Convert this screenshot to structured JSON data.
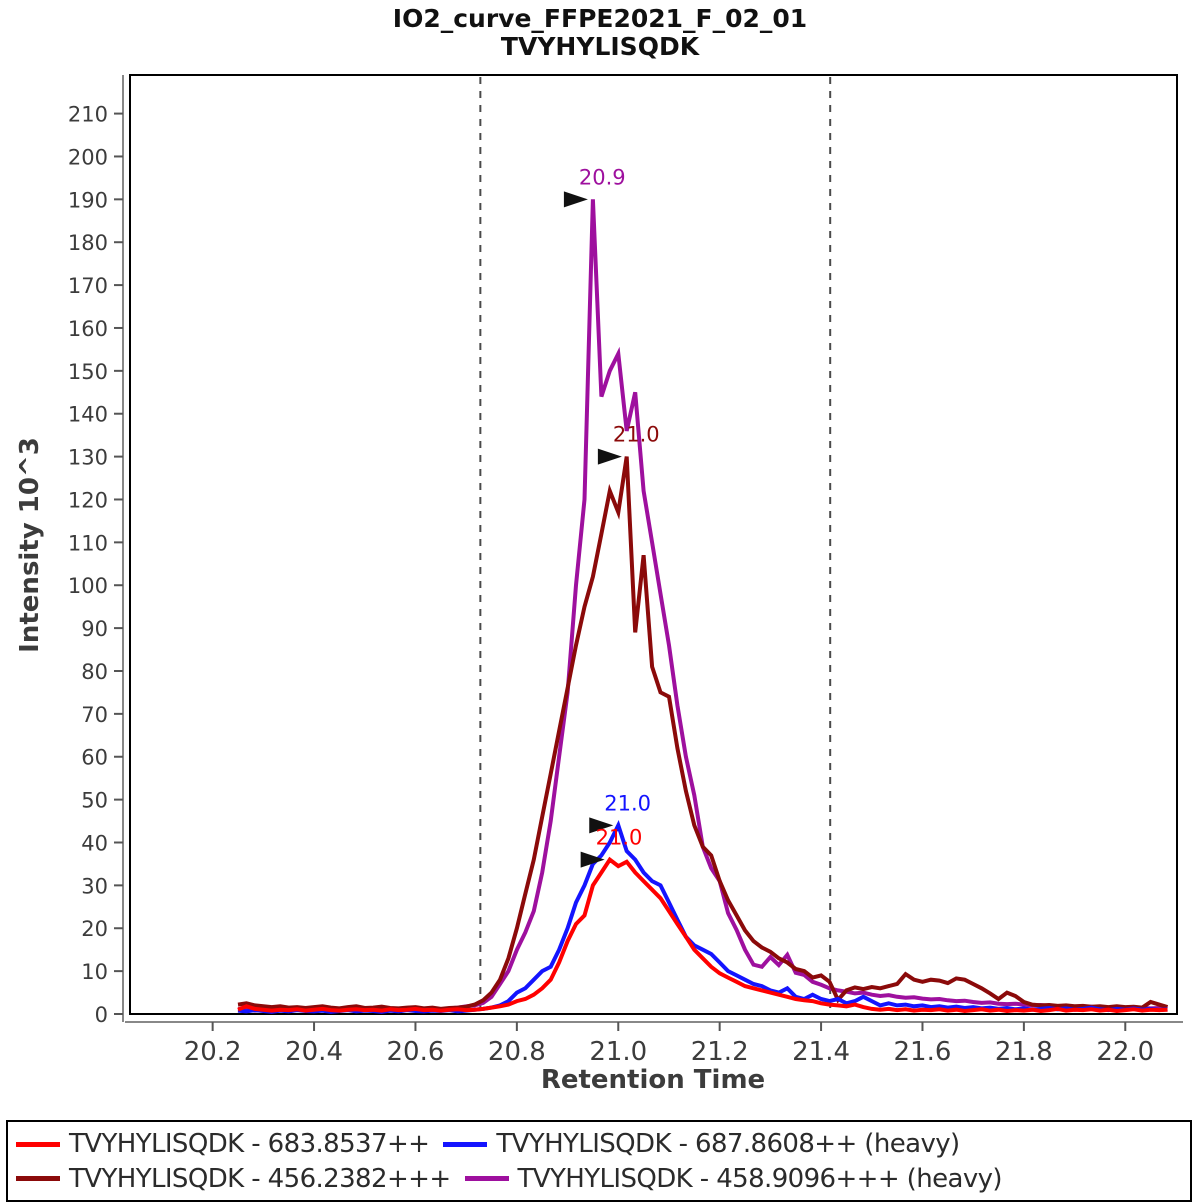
{
  "chart_data": {
    "type": "line",
    "title": "IO2_curve_FFPE2021_F_02_01",
    "subtitle": "TVYHYLISQDK",
    "xlabel": "Retention Time",
    "ylabel": "Intensity 10^3",
    "x_view": [
      20.037,
      22.102
    ],
    "ylim": [
      0,
      219
    ],
    "x_ticks": [
      "20.2",
      "20.4",
      "20.6",
      "20.8",
      "21.0",
      "21.2",
      "21.4",
      "21.6",
      "21.8",
      "22.0"
    ],
    "y_ticks": [
      0,
      10,
      20,
      30,
      40,
      50,
      60,
      70,
      80,
      90,
      100,
      110,
      120,
      130,
      140,
      150,
      160,
      170,
      180,
      190,
      200,
      210
    ],
    "grid": false,
    "x_start": 20.25,
    "x_step": 0.0166667,
    "peak_boundaries": [
      20.728,
      21.418
    ],
    "boundary_color": "#4a4a4a",
    "series": [
      {
        "name": "TVYHYLISQDK - 683.8537++",
        "color": "#ff0000",
        "values": [
          1.0,
          1.8,
          1.2,
          1.0,
          0.8,
          1.0,
          0.9,
          1.1,
          0.8,
          1.0,
          1.2,
          0.9,
          0.8,
          1.0,
          1.1,
          0.9,
          1.0,
          0.8,
          1.1,
          0.9,
          1.0,
          1.2,
          0.9,
          1.0,
          0.8,
          1.0,
          1.1,
          0.9,
          1.0,
          1.2,
          1.5,
          1.8,
          2.2,
          3,
          3.5,
          4.5,
          6,
          8,
          12,
          17,
          21,
          23,
          30,
          33,
          36,
          34.5,
          35.5,
          33,
          31,
          29,
          27,
          24,
          21,
          18,
          15,
          13,
          11,
          9.5,
          8.5,
          7.5,
          6.5,
          6,
          5.5,
          5,
          4.5,
          4,
          3.5,
          3.2,
          3,
          2.5,
          2.2,
          2.0,
          1.8,
          2.2,
          1.6,
          1.2,
          1.0,
          1.2,
          0.9,
          1.1,
          0.8,
          1.0,
          0.9,
          1.1,
          0.8,
          1.0,
          0.7,
          0.9,
          1.1,
          0.8,
          1.0,
          0.7,
          0.9,
          0.8,
          1.0,
          0.7,
          0.9,
          1.2,
          0.8,
          1.0,
          0.9,
          1.1,
          0.8,
          1.0,
          0.7,
          0.9,
          1.1,
          0.8,
          1.0,
          0.9,
          1.0
        ]
      },
      {
        "name": "TVYHYLISQDK - 687.8608++ (heavy)",
        "color": "#1414ff",
        "values": [
          0.8,
          0.6,
          0.9,
          0.7,
          0.5,
          0.8,
          0.6,
          0.9,
          0.7,
          0.6,
          0.8,
          0.5,
          0.7,
          0.9,
          0.6,
          0.8,
          0.7,
          0.5,
          0.8,
          0.6,
          0.9,
          0.7,
          0.6,
          0.8,
          0.7,
          0.9,
          0.6,
          0.8,
          1.0,
          1.2,
          1.5,
          2.0,
          3.0,
          5,
          6,
          8,
          10,
          11,
          15,
          20,
          26,
          30,
          35,
          37,
          40,
          44,
          38,
          36,
          33,
          31,
          30,
          26,
          22,
          18,
          16,
          15,
          14,
          12,
          10,
          9,
          8,
          7,
          6.5,
          5.5,
          5,
          6,
          4,
          3.5,
          4.5,
          3.5,
          3,
          3.5,
          2.5,
          3,
          4,
          3,
          2,
          2.5,
          2,
          2.2,
          1.8,
          2.0,
          1.6,
          1.8,
          1.5,
          1.7,
          1.4,
          1.6,
          1.3,
          1.5,
          1.2,
          1.4,
          1.1,
          1.3,
          1.0,
          1.2,
          1.4,
          1.1,
          1.3,
          1.0,
          1.2,
          1.5,
          1.1,
          0.9,
          1.2,
          1.0,
          1.3,
          1.0,
          1.2,
          0.9,
          1.1
        ]
      },
      {
        "name": "TVYHYLISQDK - 456.2382+++",
        "color": "#8b0a0a",
        "values": [
          2.2,
          2.5,
          2.0,
          1.8,
          1.6,
          1.8,
          1.5,
          1.6,
          1.4,
          1.6,
          1.8,
          1.5,
          1.3,
          1.6,
          1.8,
          1.4,
          1.5,
          1.7,
          1.4,
          1.3,
          1.5,
          1.6,
          1.3,
          1.5,
          1.2,
          1.4,
          1.5,
          1.7,
          2.2,
          3.2,
          5,
          8,
          13,
          20,
          28,
          36,
          46,
          56,
          66,
          76,
          86,
          95,
          102,
          112,
          122,
          117,
          130,
          89,
          107,
          81,
          75,
          74,
          62,
          52,
          44,
          39,
          37,
          31,
          26.5,
          23,
          19.5,
          17,
          15.5,
          14.5,
          13,
          12,
          10.5,
          10,
          8.5,
          9,
          7.5,
          3.3,
          5.5,
          6.2,
          5.8,
          6.3,
          6.0,
          6.5,
          7.0,
          9.3,
          8.0,
          7.5,
          8.0,
          7.8,
          7.2,
          8.3,
          8.0,
          7.0,
          6.0,
          4.8,
          3.5,
          5.0,
          4.2,
          2.8,
          2.2,
          2.0,
          2.1,
          1.9,
          2.0,
          1.8,
          1.9,
          1.7,
          1.8,
          1.6,
          1.8,
          1.6,
          1.7,
          1.5,
          2.8,
          2.2,
          1.6
        ]
      },
      {
        "name": "TVYHYLISQDK - 458.9096+++ (heavy)",
        "color": "#9e109e",
        "values": [
          1.2,
          1.0,
          0.8,
          1.0,
          1.2,
          0.9,
          1.1,
          1.0,
          0.8,
          1.1,
          1.3,
          1.0,
          0.9,
          1.2,
          1.0,
          1.1,
          0.9,
          1.0,
          1.2,
          0.8,
          1.0,
          1.1,
          0.9,
          1.2,
          1.0,
          1.3,
          1.5,
          1.8,
          2.0,
          2.6,
          4,
          7,
          10,
          15,
          19,
          24,
          33,
          45,
          60,
          75,
          100,
          120,
          190,
          144,
          150,
          154,
          136,
          145,
          122,
          110,
          98,
          86,
          72,
          60,
          51,
          39,
          34,
          31,
          23.5,
          19.6,
          15,
          11.5,
          11,
          13.3,
          11.4,
          13.8,
          9.6,
          9.1,
          7.5,
          6.8,
          6.0,
          5.5,
          5.2,
          4.8,
          5.0,
          4.5,
          4.2,
          4.4,
          4.0,
          3.8,
          3.9,
          3.6,
          3.4,
          3.5,
          3.2,
          3.0,
          3.1,
          2.8,
          2.6,
          2.7,
          2.4,
          2.3,
          2.4,
          2.2,
          2.0,
          2.1,
          1.9,
          1.8,
          1.9,
          1.7,
          1.6,
          1.7,
          1.5,
          1.5,
          1.6,
          1.4,
          1.5,
          1.4,
          1.3,
          1.4,
          1.2
        ]
      }
    ],
    "annotations": [
      {
        "label": "20.9",
        "rt": 20.95,
        "value": 190,
        "color": "#9e109e"
      },
      {
        "label": "21.0",
        "rt": 21.017,
        "value": 130,
        "color": "#8b0a0a"
      },
      {
        "label": "21.0",
        "rt": 21.0,
        "value": 44,
        "color": "#1414ff"
      },
      {
        "label": "21.0",
        "rt": 20.983,
        "value": 36,
        "color": "#ff0000"
      }
    ],
    "legend_position": "bottom"
  },
  "legend": {
    "entries": [
      {
        "label": "TVYHYLISQDK - 683.8537++",
        "color": "#ff0000"
      },
      {
        "label": "TVYHYLISQDK - 687.8608++ (heavy)",
        "color": "#1414ff"
      },
      {
        "label": "TVYHYLISQDK - 456.2382+++",
        "color": "#8b0a0a"
      },
      {
        "label": "TVYHYLISQDK - 458.9096+++ (heavy)",
        "color": "#9e109e"
      }
    ]
  }
}
